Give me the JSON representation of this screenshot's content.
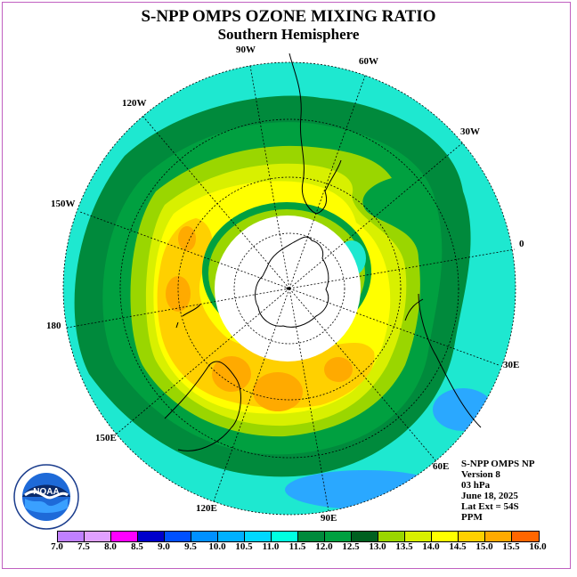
{
  "header": {
    "title": "S-NPP OMPS OZONE MIXING RATIO",
    "subtitle": "Southern Hemisphere"
  },
  "map": {
    "projection": "south polar stereographic",
    "longitude_labels": [
      "90W",
      "60W",
      "30W",
      "0",
      "30E",
      "60E",
      "90E",
      "120E",
      "150E",
      "180",
      "150W",
      "120W"
    ],
    "colors": {
      "ocean_deep": "#00ffcc",
      "cyan": "#1ee8d0",
      "dark_green": "#008a3c",
      "green": "#00b050",
      "light_green": "#9ad600",
      "yellow_green": "#d8f000",
      "yellow": "#ffff00",
      "gold": "#ffd000",
      "orange": "#ffaa00",
      "blue_patch": "#2aa8ff",
      "polar_night": "#ffffff"
    }
  },
  "info": {
    "line1": "S-NPP OMPS NP",
    "line2": "Version 8",
    "line3": "03 hPa",
    "line4": "June 18, 2025",
    "line5": "Lat Ext = 54S",
    "line6": "PPM"
  },
  "logo": {
    "text": "NOAA",
    "ring_text": "NATIONAL OCEANIC AND ATMOSPHERIC ADMINISTRATION · U.S. DEPARTMENT OF COMMERCE"
  },
  "colorbar": {
    "ticks": [
      "7.0",
      "7.5",
      "8.0",
      "8.5",
      "9.0",
      "9.5",
      "10.0",
      "10.5",
      "11.0",
      "11.5",
      "12.0",
      "12.5",
      "13.0",
      "13.5",
      "14.0",
      "14.5",
      "15.0",
      "15.5",
      "16.0"
    ],
    "colors": [
      "#c080ff",
      "#e0a0ff",
      "#ff00ff",
      "#0000cc",
      "#0050ff",
      "#0090ff",
      "#00b0ff",
      "#00d8ff",
      "#00ffe0",
      "#008a3c",
      "#00a040",
      "#006020",
      "#9ad600",
      "#d8f000",
      "#ffff00",
      "#ffd000",
      "#ffaa00",
      "#ff6600",
      "#ff0000",
      "#8b5a2b"
    ]
  }
}
